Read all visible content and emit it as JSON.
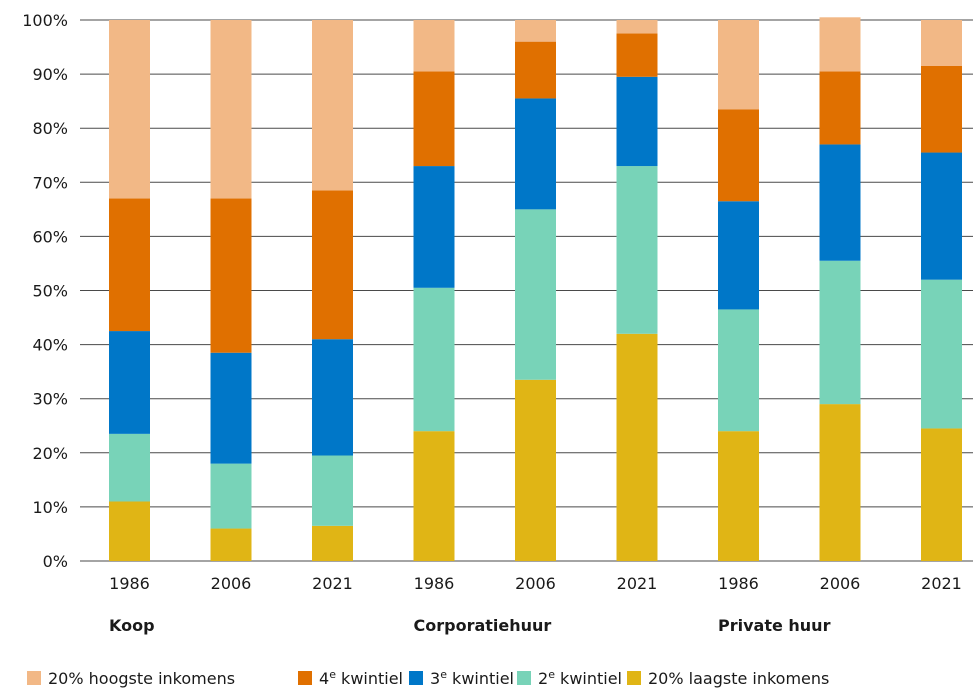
{
  "chart_data": {
    "type": "bar",
    "stacked": true,
    "categories": [
      "1986",
      "2006",
      "2021",
      "1986",
      "2006",
      "2021",
      "1986",
      "2006",
      "2021"
    ],
    "groups": [
      {
        "label": "Koop",
        "start_index": 0
      },
      {
        "label": "Corporatiehuur",
        "start_index": 3
      },
      {
        "label": "Private huur",
        "start_index": 6
      }
    ],
    "series": [
      {
        "name": "20% laagste inkomens",
        "color": "#e0b515",
        "values": [
          11,
          6,
          6.5,
          24,
          33.5,
          42,
          24,
          29,
          24.5
        ]
      },
      {
        "name": "2e kwintiel",
        "color": "#78d3b8",
        "values": [
          12.5,
          12,
          13,
          26.5,
          31.5,
          31,
          22.5,
          26.5,
          27.5
        ]
      },
      {
        "name": "3e kwintiel",
        "color": "#0077c8",
        "values": [
          19,
          20.5,
          21.5,
          22.5,
          20.5,
          16.5,
          20,
          21.5,
          23.5
        ]
      },
      {
        "name": "4e kwintiel",
        "color": "#e07000",
        "values": [
          24.5,
          28.5,
          27.5,
          17.5,
          10.5,
          8,
          17,
          13.5,
          16
        ]
      },
      {
        "name": "20% hoogste inkomens",
        "color": "#f2b886",
        "values": [
          33,
          33,
          31.5,
          9.5,
          4,
          2.5,
          16.5,
          10,
          8.5
        ]
      }
    ],
    "ylim": [
      0,
      100
    ],
    "yticks": [
      "0%",
      "10%",
      "20%",
      "30%",
      "40%",
      "50%",
      "60%",
      "70%",
      "80%",
      "90%",
      "100%"
    ],
    "grid": true,
    "legend": {
      "placement": "bottom",
      "entries": [
        {
          "label": "20% hoogste inkomens",
          "color": "#f2b886"
        },
        {
          "label": "4",
          "sup": "e",
          "suffix": " kwintiel",
          "color": "#e07000"
        },
        {
          "label": "3",
          "sup": "e",
          "suffix": " kwintiel",
          "color": "#0077c8"
        },
        {
          "label": "2",
          "sup": "e",
          "suffix": " kwintiel",
          "color": "#78d3b8"
        },
        {
          "label": "20% laagste inkomens",
          "color": "#e0b515"
        }
      ]
    }
  }
}
